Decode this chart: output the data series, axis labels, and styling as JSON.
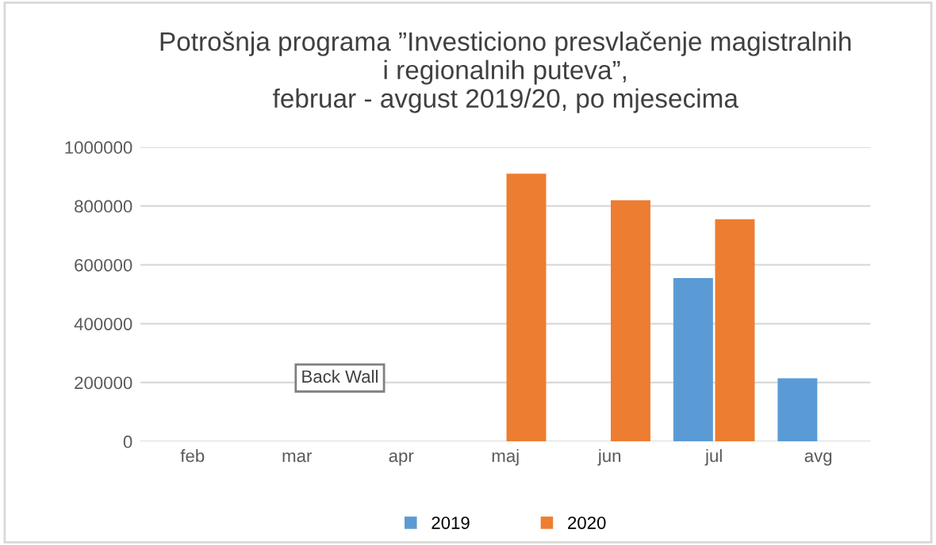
{
  "chart_data": {
    "type": "bar",
    "title": "Potrošnja programa ”Investiciono presvlačenje magistralnih\ni regionalnih puteva”,\nfebruar - avgust 2019/20, po mjesecima",
    "categories": [
      "feb",
      "mar",
      "apr",
      "maj",
      "jun",
      "jul",
      "avg"
    ],
    "series": [
      {
        "name": "2019",
        "color": "#5b9bd5",
        "values": [
          null,
          null,
          null,
          null,
          null,
          555000,
          215000
        ]
      },
      {
        "name": "2020",
        "color": "#ed7d31",
        "values": [
          null,
          null,
          null,
          910000,
          820000,
          755000,
          null
        ]
      }
    ],
    "ylim": [
      0,
      1000000
    ],
    "yticks": [
      0,
      200000,
      400000,
      600000,
      800000,
      1000000
    ],
    "grid": "y",
    "legend": "bottom",
    "annotations": [
      "Back Wall"
    ]
  }
}
